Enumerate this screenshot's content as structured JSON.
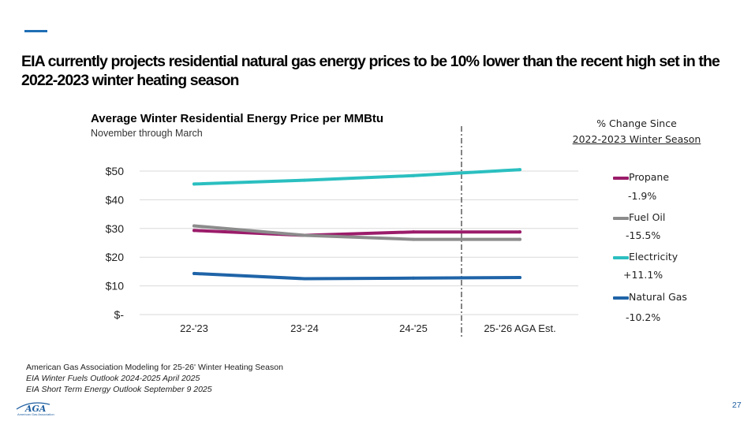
{
  "slide": {
    "title": "EIA currently projects residential natural gas energy prices to be 10% lower than the recent high set in the 2022-2023 winter heating season",
    "page_number": "27",
    "accent_color": "#1f6fb4"
  },
  "chart_data": {
    "type": "line",
    "title": "Average Winter Residential Energy Price per MMBtu",
    "subtitle": "November through March",
    "categories": [
      "22-'23",
      "23-'24",
      "24-'25",
      "25-'26 AGA Est."
    ],
    "y_ticks": [
      0,
      10,
      20,
      30,
      40,
      50
    ],
    "y_tick_labels": [
      "$-",
      "$10",
      "$20",
      "$30",
      "$40",
      "$50"
    ],
    "ylim": [
      0,
      50
    ],
    "grid": true,
    "forecast_divider_after": "24-'25",
    "series": [
      {
        "name": "Propane",
        "color": "#9b1c6a",
        "values": [
          29.3,
          27.6,
          28.8,
          28.8
        ],
        "change": "-1.9%"
      },
      {
        "name": "Fuel Oil",
        "color": "#8c8c8c",
        "values": [
          30.9,
          27.6,
          26.2,
          26.2
        ],
        "change": "-15.5%"
      },
      {
        "name": "Electricity",
        "color": "#2bbfc0",
        "values": [
          45.5,
          46.8,
          48.4,
          50.5
        ],
        "change": "+11.1%"
      },
      {
        "name": "Natural Gas",
        "color": "#1f64a8",
        "values": [
          14.3,
          12.5,
          12.7,
          12.9
        ],
        "change": "-10.2%"
      }
    ],
    "change_header_line1": "% Change Since",
    "change_header_line2": "2022-2023 Winter Season"
  },
  "sources": [
    "American Gas Association Modeling for 25-26' Winter Heating Season",
    "EIA Winter Fuels Outlook 2024-2025 April 2025",
    "EIA Short Term Energy Outlook September 9 2025"
  ],
  "logo": {
    "text": "AGA",
    "subtext": "American Gas Association"
  }
}
